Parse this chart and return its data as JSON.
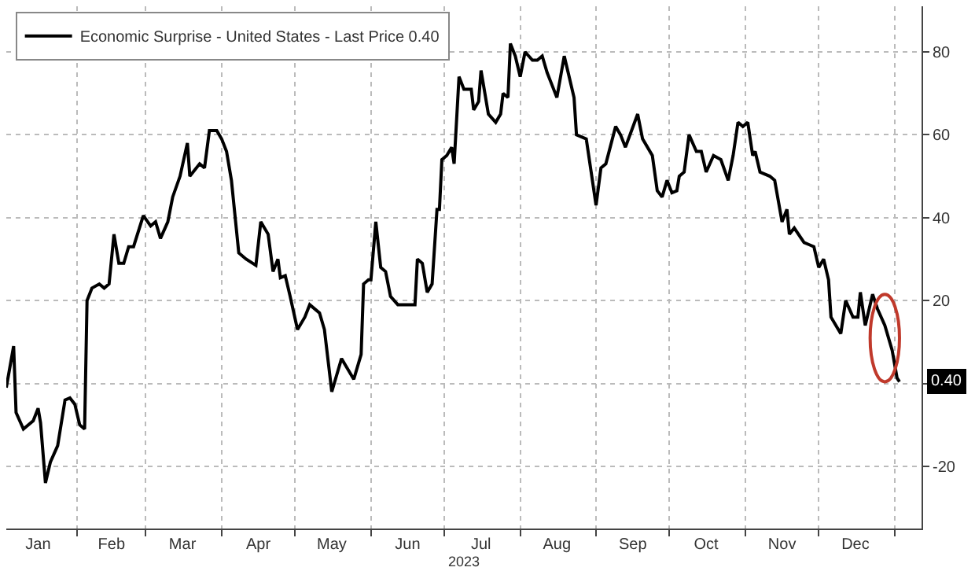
{
  "chart_data": {
    "type": "line",
    "xlabel": "2023",
    "legend": "top left",
    "grid": true,
    "line_style": "solid",
    "marker": "none",
    "xlim": [
      "2023-01-03",
      "2024-01-12"
    ],
    "ylim": [
      -35,
      91
    ],
    "xticks": [
      {
        "value": "2023-01-16",
        "label": "Jan"
      },
      {
        "value": "2023-02-15",
        "label": "Feb"
      },
      {
        "value": "2023-03-16",
        "label": "Mar"
      },
      {
        "value": "2023-04-16",
        "label": "Apr"
      },
      {
        "value": "2023-05-16",
        "label": "May"
      },
      {
        "value": "2023-06-16",
        "label": "Jun"
      },
      {
        "value": "2023-07-16",
        "label": "Jul"
      },
      {
        "value": "2023-08-16",
        "label": "Aug"
      },
      {
        "value": "2023-09-16",
        "label": "Sep"
      },
      {
        "value": "2023-10-16",
        "label": "Oct"
      },
      {
        "value": "2023-11-16",
        "label": "Nov"
      },
      {
        "value": "2023-12-16",
        "label": "Dec"
      },
      {
        "value": "2023-02-01",
        "label": null
      },
      {
        "value": "2023-03-01",
        "label": null
      },
      {
        "value": "2023-04-01",
        "label": null
      },
      {
        "value": "2023-05-01",
        "label": null
      },
      {
        "value": "2023-06-01",
        "label": null
      },
      {
        "value": "2023-07-01",
        "label": null
      },
      {
        "value": "2023-08-01",
        "label": null
      },
      {
        "value": "2023-09-01",
        "label": null
      },
      {
        "value": "2023-10-01",
        "label": null
      },
      {
        "value": "2023-11-01",
        "label": null
      },
      {
        "value": "2023-12-01",
        "label": null
      },
      {
        "value": "2024-01-01",
        "label": null
      }
    ],
    "yticks": [
      -20,
      {
        "value": 0,
        "label": null
      },
      20,
      40,
      60,
      80
    ],
    "annotations": [
      {
        "text": "0.40",
        "y": 0.4
      }
    ],
    "series": [
      {
        "name": "Economic Surprise - United States - Last Price 0.40",
        "color": "#000000",
        "x": [
          "2023-01-03",
          "2023-01-06",
          "2023-01-07",
          "2023-01-10",
          "2023-01-14",
          "2023-01-16",
          "2023-01-17",
          "2023-01-19",
          "2023-01-21",
          "2023-01-24",
          "2023-01-27",
          "2023-01-29",
          "2023-01-31",
          "2023-02-02",
          "2023-02-04",
          "2023-02-05",
          "2023-02-07",
          "2023-02-10",
          "2023-02-12",
          "2023-02-14",
          "2023-02-16",
          "2023-02-18",
          "2023-02-20",
          "2023-02-22",
          "2023-02-24",
          "2023-02-28",
          "2023-03-03",
          "2023-03-05",
          "2023-03-07",
          "2023-03-10",
          "2023-03-12",
          "2023-03-15",
          "2023-03-18",
          "2023-03-19",
          "2023-03-23",
          "2023-03-25",
          "2023-03-27",
          "2023-03-30",
          "2023-04-01",
          "2023-04-03",
          "2023-04-05",
          "2023-04-08",
          "2023-04-11",
          "2023-04-15",
          "2023-04-17",
          "2023-04-20",
          "2023-04-22",
          "2023-04-24",
          "2023-04-25",
          "2023-04-27",
          "2023-04-29",
          "2023-05-02",
          "2023-05-05",
          "2023-05-07",
          "2023-05-11",
          "2023-05-13",
          "2023-05-16",
          "2023-05-18",
          "2023-05-20",
          "2023-05-22",
          "2023-05-25",
          "2023-05-28",
          "2023-05-29",
          "2023-05-31",
          "2023-06-01",
          "2023-06-03",
          "2023-06-05",
          "2023-06-07",
          "2023-06-09",
          "2023-06-12",
          "2023-06-15",
          "2023-06-19",
          "2023-06-20",
          "2023-06-22",
          "2023-06-24",
          "2023-06-26",
          "2023-06-28",
          "2023-06-29",
          "2023-06-30",
          "2023-07-02",
          "2023-07-04",
          "2023-07-05",
          "2023-07-07",
          "2023-07-09",
          "2023-07-12",
          "2023-07-13",
          "2023-07-15",
          "2023-07-16",
          "2023-07-19",
          "2023-07-22",
          "2023-07-24",
          "2023-07-25",
          "2023-07-27",
          "2023-07-28",
          "2023-07-30",
          "2023-08-01",
          "2023-08-03",
          "2023-08-06",
          "2023-08-08",
          "2023-08-10",
          "2023-08-12",
          "2023-08-14",
          "2023-08-16",
          "2023-08-19",
          "2023-08-21",
          "2023-08-23",
          "2023-08-24",
          "2023-08-28",
          "2023-08-30",
          "2023-09-01",
          "2023-09-03",
          "2023-09-05",
          "2023-09-09",
          "2023-09-11",
          "2023-09-13",
          "2023-09-18",
          "2023-09-20",
          "2023-09-24",
          "2023-09-26",
          "2023-09-28",
          "2023-09-30",
          "2023-10-02",
          "2023-10-04",
          "2023-10-05",
          "2023-10-07",
          "2023-10-09",
          "2023-10-12",
          "2023-10-14",
          "2023-10-16",
          "2023-10-19",
          "2023-10-22",
          "2023-10-25",
          "2023-10-27",
          "2023-10-29",
          "2023-10-31",
          "2023-11-02",
          "2023-11-04",
          "2023-11-05",
          "2023-11-07",
          "2023-11-11",
          "2023-11-13",
          "2023-11-16",
          "2023-11-18",
          "2023-11-19",
          "2023-11-21",
          "2023-11-25",
          "2023-11-27",
          "2023-11-29",
          "2023-12-01",
          "2023-12-03",
          "2023-12-05",
          "2023-12-06",
          "2023-12-10",
          "2023-12-12",
          "2023-12-15",
          "2023-12-17",
          "2023-12-18",
          "2023-12-20",
          "2023-12-22",
          "2023-12-23",
          "2023-12-25",
          "2023-12-28",
          "2023-12-31",
          "2024-01-02",
          "2024-01-03"
        ],
        "values": [
          -1,
          9,
          -7,
          -11,
          -9,
          -6,
          -9.5,
          -24,
          -19,
          -15,
          -4,
          -3.5,
          -5,
          -10,
          -11,
          20,
          23,
          24,
          23,
          24,
          36,
          29,
          29,
          33,
          33,
          40.5,
          38,
          39,
          35,
          39,
          45,
          50,
          58,
          50,
          53,
          52,
          61,
          61,
          59,
          56,
          49,
          31.5,
          30,
          28.5,
          39,
          36,
          27,
          30,
          25.5,
          26,
          21,
          13,
          16,
          19,
          17,
          13,
          -2,
          2,
          6,
          4,
          1,
          7,
          24,
          25,
          25,
          39,
          28,
          27,
          21,
          19,
          19,
          19,
          30,
          29,
          22,
          24,
          42,
          42,
          54,
          55,
          57,
          53,
          74,
          71,
          71,
          66,
          68,
          75.5,
          65,
          63,
          65,
          70,
          69,
          82,
          79,
          74,
          80,
          78,
          78,
          79,
          75,
          72,
          69,
          79,
          74,
          69,
          60,
          59,
          51,
          43,
          52,
          53,
          62,
          60,
          57,
          65,
          59,
          55,
          46.5,
          45,
          49,
          46,
          46.5,
          50,
          51,
          60,
          56,
          56,
          51,
          55,
          54,
          49,
          55,
          63,
          62,
          63,
          55,
          56,
          51,
          50,
          49,
          39,
          42,
          36,
          37.5,
          34,
          33.5,
          33,
          28,
          30,
          25,
          16,
          12,
          20,
          16,
          16,
          22,
          14,
          19,
          21.5,
          18,
          14,
          8,
          1.3,
          0.4
        ]
      }
    ]
  }
}
